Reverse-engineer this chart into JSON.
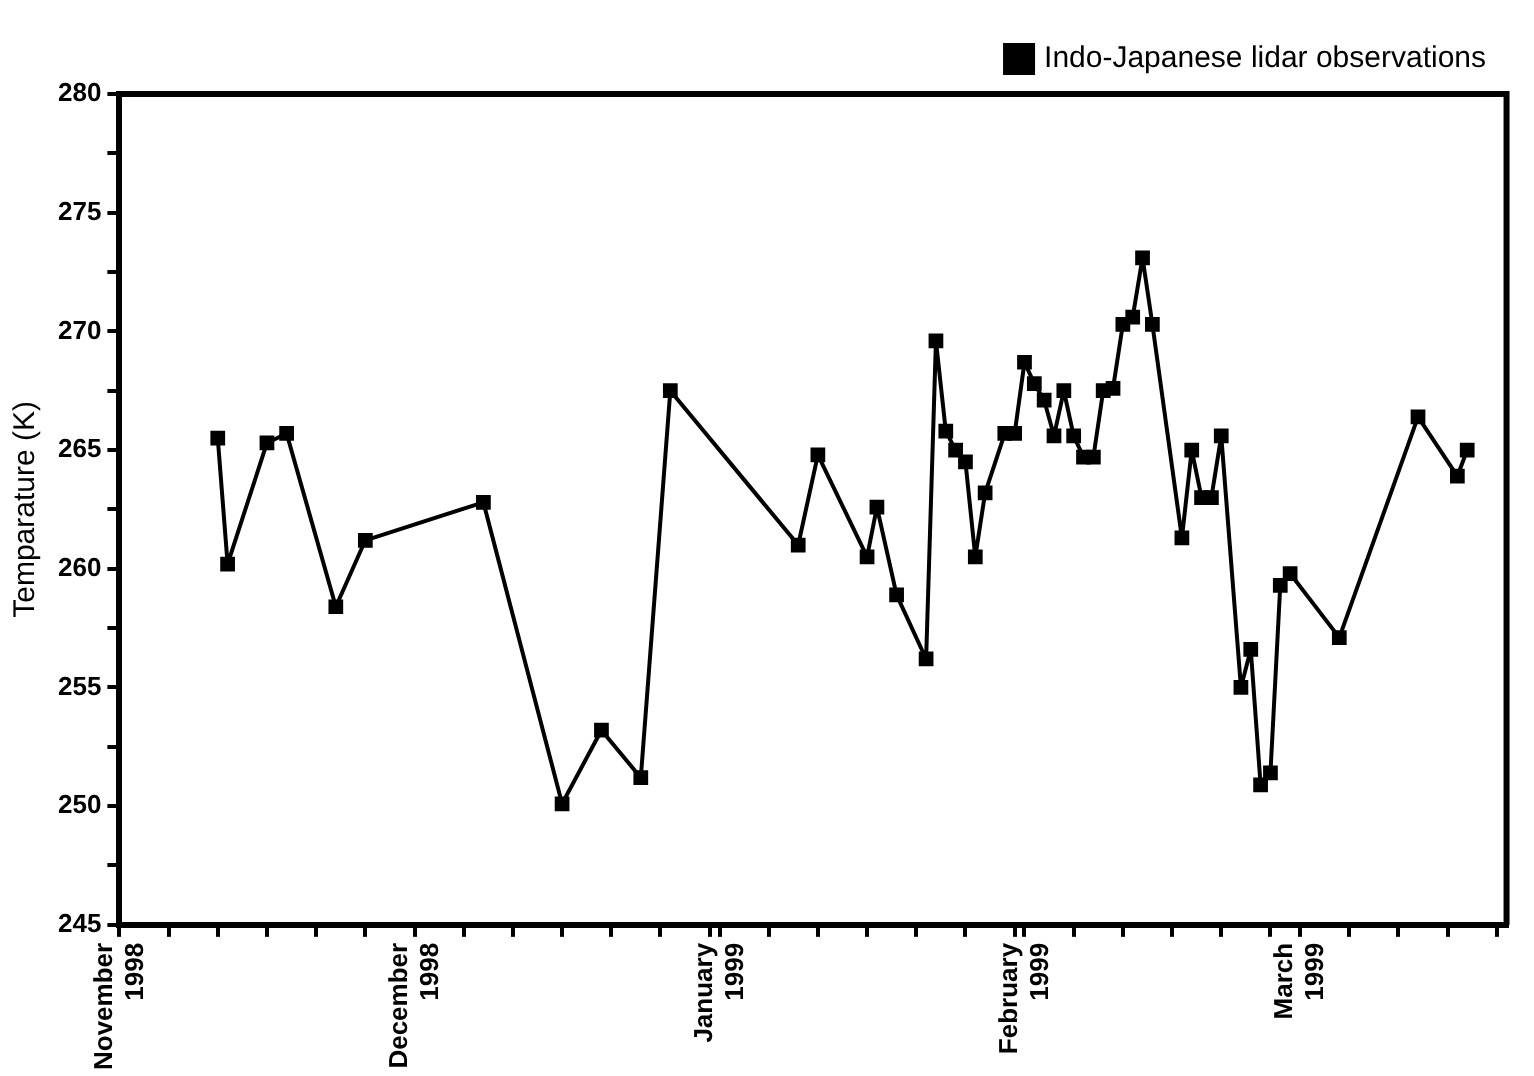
{
  "chart_data": {
    "type": "line",
    "ylabel": "Temparature (K)",
    "legend": "top right",
    "marker": "square",
    "line_style": "solid",
    "grid": false,
    "xlim": [
      "1998-11-01",
      "1999-03-22"
    ],
    "xticks": [
      {
        "value": "1998-11-01",
        "label": "November 1998"
      },
      {
        "value": "1998-11-06",
        "label": null
      },
      {
        "value": "1998-11-11",
        "label": null
      },
      {
        "value": "1998-11-16",
        "label": null
      },
      {
        "value": "1998-11-21",
        "label": null
      },
      {
        "value": "1998-11-26",
        "label": null
      },
      {
        "value": "1998-12-01",
        "label": "December 1998"
      },
      {
        "value": "1998-12-06",
        "label": null
      },
      {
        "value": "1998-12-11",
        "label": null
      },
      {
        "value": "1998-12-16",
        "label": null
      },
      {
        "value": "1998-12-21",
        "label": null
      },
      {
        "value": "1998-12-26",
        "label": null
      },
      {
        "value": "1998-12-31",
        "label": null
      },
      {
        "value": "1999-01-01",
        "label": "January 1999"
      },
      {
        "value": "1999-01-06",
        "label": null
      },
      {
        "value": "1999-01-11",
        "label": null
      },
      {
        "value": "1999-01-16",
        "label": null
      },
      {
        "value": "1999-01-21",
        "label": null
      },
      {
        "value": "1999-01-26",
        "label": null
      },
      {
        "value": "1999-01-31",
        "label": null
      },
      {
        "value": "1999-02-01",
        "label": "February 1999"
      },
      {
        "value": "1999-02-06",
        "label": null
      },
      {
        "value": "1999-02-11",
        "label": null
      },
      {
        "value": "1999-02-16",
        "label": null
      },
      {
        "value": "1999-02-21",
        "label": null
      },
      {
        "value": "1999-02-26",
        "label": null
      },
      {
        "value": "1999-03-01",
        "label": "March 1999"
      },
      {
        "value": "1999-03-06",
        "label": null
      },
      {
        "value": "1999-03-11",
        "label": null
      },
      {
        "value": "1999-03-16",
        "label": null
      },
      {
        "value": "1999-03-21",
        "label": null
      }
    ],
    "ylim": [
      245,
      280
    ],
    "yticks": [
      245,
      {
        "value": 247.5,
        "label": null
      },
      250,
      {
        "value": 252.5,
        "label": null
      },
      255,
      {
        "value": 257.5,
        "label": null
      },
      260,
      {
        "value": 262.5,
        "label": null
      },
      265,
      {
        "value": 267.5,
        "label": null
      },
      270,
      {
        "value": 272.5,
        "label": null
      },
      275,
      {
        "value": 277.5,
        "label": null
      },
      280
    ],
    "x": [
      "1998-11-11",
      "1998-11-12",
      "1998-11-16",
      "1998-11-18",
      "1998-11-23",
      "1998-11-26",
      "1998-12-08",
      "1998-12-16",
      "1998-12-20",
      "1998-12-24",
      "1998-12-27",
      "1999-01-09",
      "1999-01-11",
      "1999-01-16",
      "1999-01-17",
      "1999-01-19",
      "1999-01-22",
      "1999-01-23",
      "1999-01-24",
      "1999-01-25",
      "1999-01-26",
      "1999-01-27",
      "1999-01-28",
      "1999-01-30",
      "1999-01-31",
      "1999-02-01",
      "1999-02-02",
      "1999-02-03",
      "1999-02-04",
      "1999-02-05",
      "1999-02-06",
      "1999-02-07",
      "1999-02-08",
      "1999-02-09",
      "1999-02-10",
      "1999-02-11",
      "1999-02-12",
      "1999-02-13",
      "1999-02-14",
      "1999-02-17",
      "1999-02-18",
      "1999-02-19",
      "1999-02-20",
      "1999-02-21",
      "1999-02-23",
      "1999-02-24",
      "1999-02-25",
      "1999-02-26",
      "1999-02-27",
      "1999-02-28",
      "1999-03-05",
      "1999-03-13",
      "1999-03-17",
      "1999-03-18"
    ],
    "series": [
      {
        "name": "Indo-Japanese lidar observations",
        "color": "#000000",
        "values": [
          265.5,
          260.2,
          265.3,
          265.7,
          258.4,
          261.2,
          262.8,
          250.1,
          253.2,
          251.2,
          267.5,
          261.0,
          264.8,
          260.5,
          262.6,
          258.9,
          256.2,
          269.6,
          265.8,
          265.0,
          264.5,
          260.5,
          263.2,
          265.7,
          265.7,
          268.7,
          267.8,
          267.1,
          265.6,
          267.5,
          265.6,
          264.7,
          264.7,
          267.5,
          267.6,
          270.3,
          270.6,
          273.1,
          270.3,
          261.3,
          265.0,
          263.0,
          263.0,
          265.6,
          255.0,
          256.6,
          250.9,
          251.4,
          259.3,
          259.8,
          257.1,
          266.4,
          263.9,
          265.0
        ]
      }
    ]
  }
}
